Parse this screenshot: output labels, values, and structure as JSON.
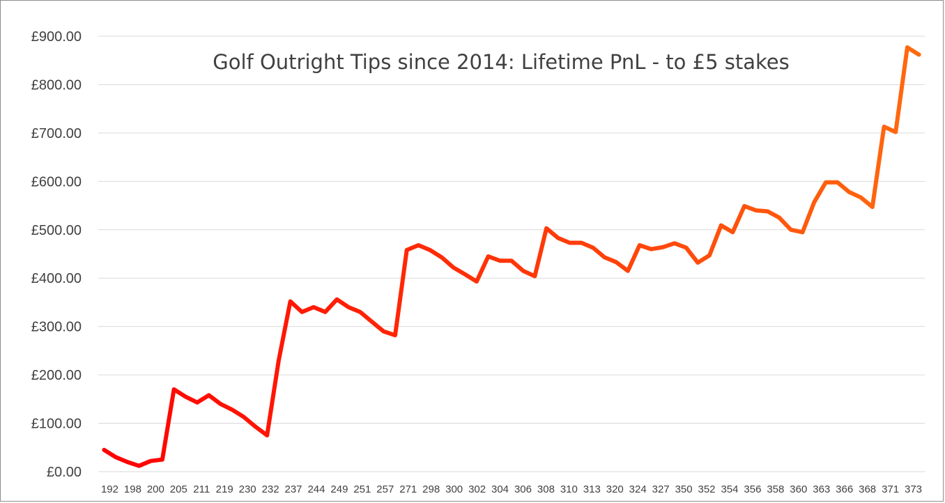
{
  "chart_data": {
    "type": "line",
    "title": "Golf Outright Tips since 2014: Lifetime PnL - to £5 stakes",
    "xlabel": "",
    "ylabel": "",
    "ylim": [
      0,
      900
    ],
    "yticks": [
      0,
      100,
      200,
      300,
      400,
      500,
      600,
      700,
      800,
      900
    ],
    "ytick_labels": [
      "£0.00",
      "£100.00",
      "£200.00",
      "£300.00",
      "£400.00",
      "£500.00",
      "£600.00",
      "£700.00",
      "£800.00",
      "£900.00"
    ],
    "grid": true,
    "legend": "none",
    "line_gradient": [
      "#ff0000",
      "#ff6a10"
    ],
    "x_tick_labels": [
      "192",
      "198",
      "200",
      "205",
      "211",
      "219",
      "230",
      "232",
      "237",
      "244",
      "249",
      "251",
      "257",
      "271",
      "298",
      "300",
      "302",
      "304",
      "306",
      "308",
      "310",
      "313",
      "320",
      "324",
      "327",
      "350",
      "352",
      "354",
      "356",
      "358",
      "360",
      "363",
      "366",
      "368",
      "371",
      "373"
    ],
    "series": [
      {
        "values": [
          45,
          30,
          20,
          12,
          22,
          25,
          170,
          155,
          143,
          158,
          140,
          128,
          113,
          93,
          75,
          230,
          352,
          330,
          340,
          330,
          356,
          340,
          330,
          310,
          290,
          282,
          458,
          468,
          458,
          443,
          422,
          408,
          393,
          445,
          436,
          436,
          415,
          404,
          503,
          483,
          473,
          473,
          463,
          443,
          433,
          415,
          468,
          460,
          464,
          472,
          463,
          432,
          447,
          509,
          495,
          549,
          540,
          538,
          525,
          500,
          495,
          557,
          598,
          598,
          578,
          567,
          547,
          713,
          702,
          877,
          862
        ]
      }
    ]
  }
}
